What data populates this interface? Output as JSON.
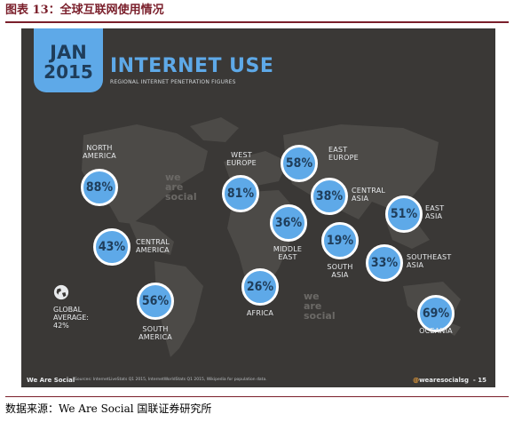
{
  "caption": "图表 13：全球互联网使用情况",
  "source": "数据来源：We Are Social  国联证券研究所",
  "slide": {
    "month": "JAN",
    "year": "2015",
    "title": "INTERNET USE",
    "subtitle": "REGIONAL INTERNET PENETRATION FIGURES",
    "watermark": [
      "we",
      "are",
      "social"
    ],
    "footer_left": "We Are Social",
    "footer_source": "Sources: InternetLiveStats Q1 2015, InternetWorldStats Q1 2015, Wikipedia for population data.",
    "footer_handle": "wearesocialsg",
    "footer_at": "@",
    "page_number": "15",
    "global_average": {
      "label_line1": "GLOBAL",
      "label_line2": "AVERAGE:",
      "value": "42%"
    },
    "colors": {
      "background": "#3a3836",
      "accent": "#5ea9e8",
      "land": "#4c4a47"
    }
  },
  "regions": [
    {
      "name1": "NORTH",
      "name2": "AMERICA",
      "value": "88%"
    },
    {
      "name1": "CENTRAL",
      "name2": "AMERICA",
      "value": "43%"
    },
    {
      "name1": "SOUTH",
      "name2": "AMERICA",
      "value": "56%"
    },
    {
      "name1": "WEST",
      "name2": "EUROPE",
      "value": "81%"
    },
    {
      "name1": "EAST",
      "name2": "EUROPE",
      "value": "58%"
    },
    {
      "name1": "CENTRAL",
      "name2": "ASIA",
      "value": "38%"
    },
    {
      "name1": "MIDDLE",
      "name2": "EAST",
      "value": "36%"
    },
    {
      "name1": "SOUTH",
      "name2": "ASIA",
      "value": "19%"
    },
    {
      "name1": "EAST",
      "name2": "ASIA",
      "value": "51%"
    },
    {
      "name1": "SOUTHEAST",
      "name2": "ASIA",
      "value": "33%"
    },
    {
      "name1": "",
      "name2": "AFRICA",
      "value": "26%"
    },
    {
      "name1": "",
      "name2": "OCEANIA",
      "value": "69%"
    }
  ]
}
